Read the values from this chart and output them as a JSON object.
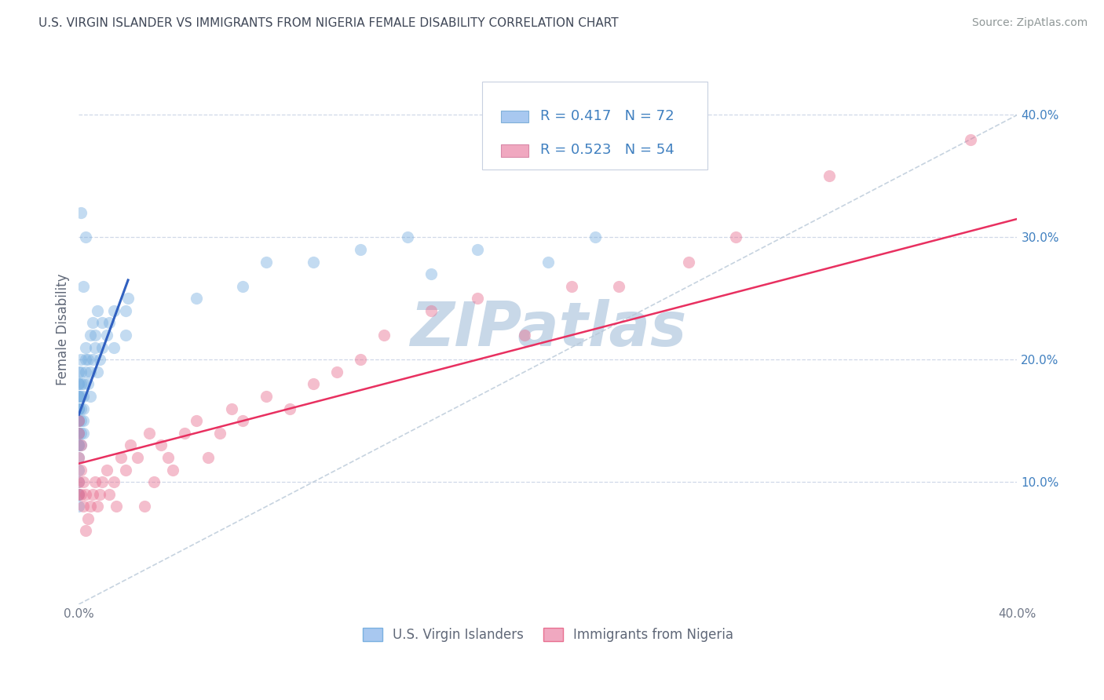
{
  "title": "U.S. VIRGIN ISLANDER VS IMMIGRANTS FROM NIGERIA FEMALE DISABILITY CORRELATION CHART",
  "source": "Source: ZipAtlas.com",
  "ylabel": "Female Disability",
  "ylabel_right_ticks": [
    "10.0%",
    "20.0%",
    "30.0%",
    "40.0%"
  ],
  "ylabel_right_values": [
    0.1,
    0.2,
    0.3,
    0.4
  ],
  "xlim": [
    0.0,
    0.4
  ],
  "ylim": [
    0.0,
    0.45
  ],
  "legend1_label": "R = 0.417   N = 72",
  "legend2_label": "R = 0.523   N = 54",
  "legend1_color": "#a8c8f0",
  "legend2_color": "#f0a8c0",
  "scatter1_color": "#7ab0e0",
  "scatter2_color": "#e87090",
  "line1_color": "#3060c0",
  "line2_color": "#e83060",
  "watermark": "ZIPatlas",
  "watermark_color": "#c8d8e8",
  "legend_text_color": "#4080c0",
  "background_color": "#ffffff",
  "grid_color": "#d0d8e8",
  "bottom_legend_label1": "U.S. Virgin Islanders",
  "bottom_legend_label2": "Immigrants from Nigeria",
  "us_vi_x": [
    0.0,
    0.0,
    0.0,
    0.0,
    0.0,
    0.0,
    0.0,
    0.0,
    0.0,
    0.0,
    0.0,
    0.0,
    0.0,
    0.0,
    0.0,
    0.0,
    0.0,
    0.0,
    0.0,
    0.0,
    0.001,
    0.001,
    0.001,
    0.001,
    0.001,
    0.001,
    0.001,
    0.001,
    0.002,
    0.002,
    0.002,
    0.002,
    0.002,
    0.003,
    0.003,
    0.003,
    0.004,
    0.004,
    0.005,
    0.005,
    0.005,
    0.006,
    0.007,
    0.007,
    0.008,
    0.009,
    0.01,
    0.01,
    0.012,
    0.013,
    0.015,
    0.015,
    0.02,
    0.02,
    0.021,
    0.05,
    0.07,
    0.08,
    0.1,
    0.12,
    0.14,
    0.15,
    0.17,
    0.2,
    0.22,
    0.003,
    0.002,
    0.001,
    0.0,
    0.0,
    0.006,
    0.008
  ],
  "us_vi_y": [
    0.14,
    0.15,
    0.15,
    0.16,
    0.16,
    0.17,
    0.17,
    0.17,
    0.18,
    0.18,
    0.19,
    0.13,
    0.14,
    0.12,
    0.15,
    0.11,
    0.16,
    0.13,
    0.1,
    0.09,
    0.15,
    0.16,
    0.17,
    0.18,
    0.14,
    0.13,
    0.19,
    0.2,
    0.16,
    0.15,
    0.17,
    0.14,
    0.18,
    0.19,
    0.2,
    0.21,
    0.18,
    0.2,
    0.17,
    0.19,
    0.22,
    0.2,
    0.21,
    0.22,
    0.19,
    0.2,
    0.21,
    0.23,
    0.22,
    0.23,
    0.21,
    0.24,
    0.22,
    0.24,
    0.25,
    0.25,
    0.26,
    0.28,
    0.28,
    0.29,
    0.3,
    0.27,
    0.29,
    0.28,
    0.3,
    0.3,
    0.26,
    0.32,
    0.08,
    0.09,
    0.23,
    0.24
  ],
  "nigeria_x": [
    0.0,
    0.0,
    0.0,
    0.0,
    0.0,
    0.001,
    0.001,
    0.001,
    0.002,
    0.002,
    0.003,
    0.003,
    0.004,
    0.005,
    0.006,
    0.007,
    0.008,
    0.009,
    0.01,
    0.012,
    0.013,
    0.015,
    0.016,
    0.018,
    0.02,
    0.022,
    0.025,
    0.028,
    0.03,
    0.032,
    0.035,
    0.038,
    0.04,
    0.045,
    0.05,
    0.055,
    0.06,
    0.065,
    0.07,
    0.08,
    0.09,
    0.1,
    0.11,
    0.12,
    0.13,
    0.15,
    0.17,
    0.19,
    0.21,
    0.23,
    0.26,
    0.28,
    0.32,
    0.38
  ],
  "nigeria_y": [
    0.14,
    0.15,
    0.12,
    0.09,
    0.1,
    0.13,
    0.11,
    0.09,
    0.1,
    0.08,
    0.09,
    0.06,
    0.07,
    0.08,
    0.09,
    0.1,
    0.08,
    0.09,
    0.1,
    0.11,
    0.09,
    0.1,
    0.08,
    0.12,
    0.11,
    0.13,
    0.12,
    0.08,
    0.14,
    0.1,
    0.13,
    0.12,
    0.11,
    0.14,
    0.15,
    0.12,
    0.14,
    0.16,
    0.15,
    0.17,
    0.16,
    0.18,
    0.19,
    0.2,
    0.22,
    0.24,
    0.25,
    0.22,
    0.26,
    0.26,
    0.28,
    0.3,
    0.35,
    0.38
  ],
  "blue_line_x": [
    0.0,
    0.021
  ],
  "blue_line_y": [
    0.155,
    0.265
  ],
  "pink_line_x": [
    0.0,
    0.4
  ],
  "pink_line_y": [
    0.115,
    0.315
  ],
  "diag_line_x": [
    0.0,
    0.4
  ],
  "diag_line_y": [
    0.0,
    0.4
  ]
}
